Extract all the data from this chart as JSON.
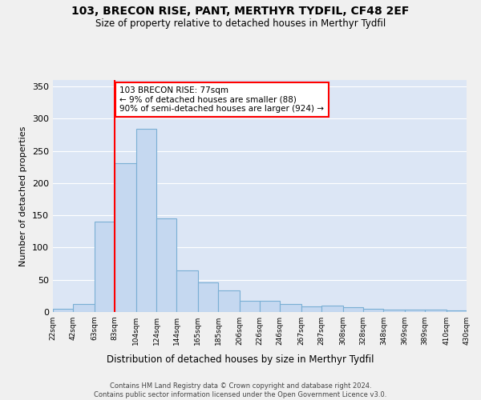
{
  "title": "103, BRECON RISE, PANT, MERTHYR TYDFIL, CF48 2EF",
  "subtitle": "Size of property relative to detached houses in Merthyr Tydfil",
  "xlabel": "Distribution of detached houses by size in Merthyr Tydfil",
  "ylabel": "Number of detached properties",
  "bar_color": "#c5d8f0",
  "bar_edge_color": "#7aafd4",
  "bg_color": "#dce6f5",
  "grid_color": "#ffffff",
  "fig_bg_color": "#f0f0f0",
  "red_line_x": 83,
  "annotation_text": "103 BRECON RISE: 77sqm\n← 9% of detached houses are smaller (88)\n90% of semi-detached houses are larger (924) →",
  "bins": [
    22,
    42,
    63,
    83,
    104,
    124,
    144,
    165,
    185,
    206,
    226,
    246,
    267,
    287,
    308,
    328,
    348,
    369,
    389,
    410,
    430
  ],
  "counts": [
    5,
    13,
    140,
    231,
    284,
    145,
    65,
    46,
    33,
    17,
    17,
    12,
    9,
    10,
    7,
    5,
    4,
    4,
    4,
    2
  ],
  "ylim": [
    0,
    360
  ],
  "yticks": [
    0,
    50,
    100,
    150,
    200,
    250,
    300,
    350
  ],
  "footnote": "Contains HM Land Registry data © Crown copyright and database right 2024.\nContains public sector information licensed under the Open Government Licence v3.0.",
  "tick_labels": [
    "22sqm",
    "42sqm",
    "63sqm",
    "83sqm",
    "104sqm",
    "124sqm",
    "144sqm",
    "165sqm",
    "185sqm",
    "206sqm",
    "226sqm",
    "246sqm",
    "267sqm",
    "287sqm",
    "308sqm",
    "328sqm",
    "348sqm",
    "369sqm",
    "389sqm",
    "410sqm",
    "430sqm"
  ]
}
